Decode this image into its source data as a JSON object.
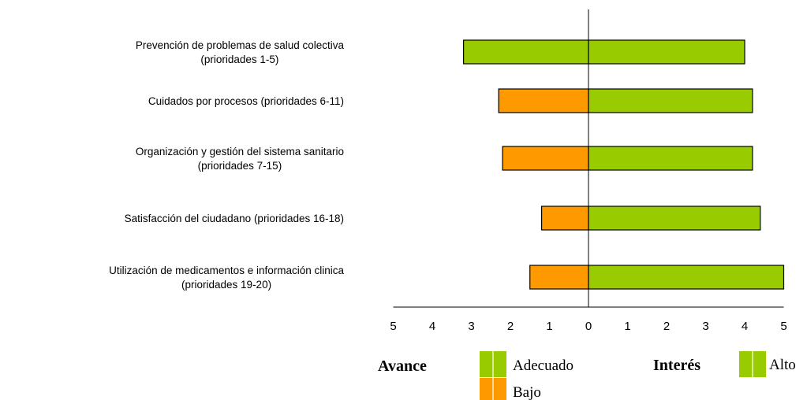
{
  "chart_data": {
    "type": "bar",
    "orientation": "horizontal-diverging",
    "categories": [
      [
        "Prevención de problemas de salud colectiva",
        "(prioridades 1-5)"
      ],
      [
        "Cuidados por procesos (prioridades 6-11)"
      ],
      [
        "Organización y gestión del sistema sanitario",
        "(prioridades 7-15)"
      ],
      [
        "Satisfacción del ciudadano (prioridades 16-18)"
      ],
      [
        "Utilización de medicamentos e información clinica",
        "(prioridades 19-20)"
      ]
    ],
    "avance": {
      "values": [
        3.2,
        2.3,
        2.2,
        1.2,
        1.5
      ],
      "levels": [
        "Adecuado",
        "Bajo",
        "Bajo",
        "Bajo",
        "Bajo"
      ]
    },
    "interes": {
      "values": [
        4.0,
        4.2,
        4.2,
        4.4,
        5.0
      ],
      "levels": [
        "Alto",
        "Alto",
        "Alto",
        "Alto",
        "Alto"
      ]
    },
    "x_ticks": [
      "5",
      "4",
      "3",
      "2",
      "1",
      "0",
      "1",
      "2",
      "3",
      "4",
      "5"
    ],
    "xlim": [
      -5,
      5
    ],
    "grid": false
  },
  "legend": {
    "avance_title": "Avance",
    "avance_items": [
      {
        "label": "Adecuado",
        "color": "#99cc00"
      },
      {
        "label": "Bajo",
        "color": "#ff9900"
      }
    ],
    "interes_title": "Interés",
    "interes_items": [
      {
        "label": "Alto",
        "color": "#99cc00"
      }
    ]
  },
  "colors": {
    "Adecuado": "#99cc00",
    "Bajo": "#ff9900",
    "Alto": "#99cc00",
    "bar_stroke": "#000000",
    "axis": "#000000"
  }
}
